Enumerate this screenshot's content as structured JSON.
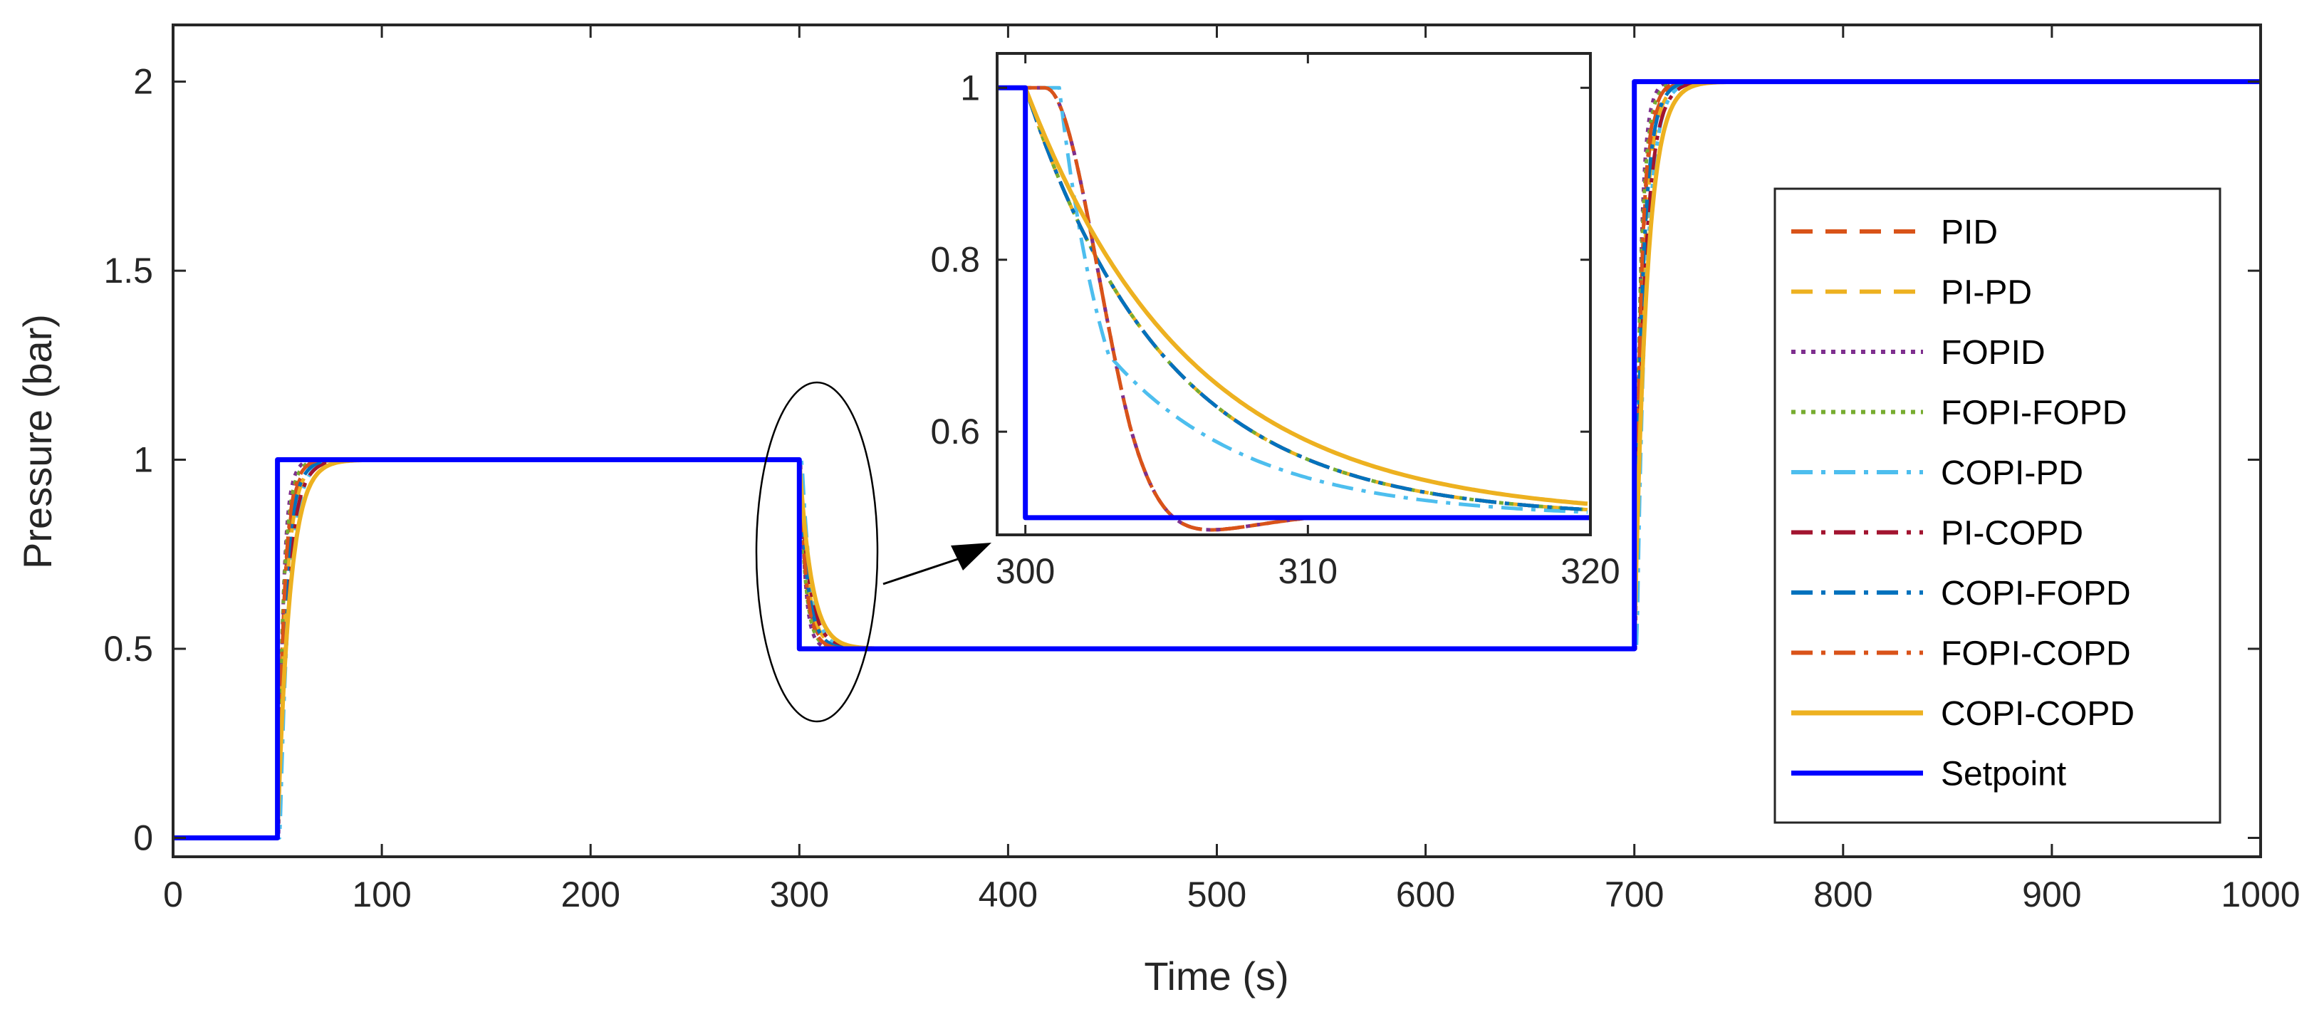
{
  "chart_data": {
    "type": "line",
    "xlabel": "Time (s)",
    "ylabel": "Pressure (bar)",
    "xlim": [
      0,
      1000
    ],
    "ylim": [
      -0.05,
      2.15
    ],
    "xticks": [
      "0",
      "100",
      "200",
      "300",
      "400",
      "500",
      "600",
      "700",
      "800",
      "900",
      "1000"
    ],
    "yticks": [
      "0",
      "0.5",
      "1",
      "1.5",
      "2"
    ],
    "grid": false,
    "legend_position": "right",
    "series": [
      {
        "name": "PID",
        "color": "#D95319",
        "style": "dashed"
      },
      {
        "name": "PI-PD",
        "color": "#EDB120",
        "style": "dashed"
      },
      {
        "name": "FOPID",
        "color": "#7E2F8E",
        "style": "dotted"
      },
      {
        "name": "FOPI-FOPD",
        "color": "#77AC30",
        "style": "dotted"
      },
      {
        "name": "COPI-PD",
        "color": "#4DBEEE",
        "style": "dashdot"
      },
      {
        "name": "PI-COPD",
        "color": "#A2142F",
        "style": "dashdot"
      },
      {
        "name": "COPI-FOPD",
        "color": "#0072BD",
        "style": "dashdot"
      },
      {
        "name": "FOPI-COPD",
        "color": "#D95319",
        "style": "dashdot"
      },
      {
        "name": "COPI-COPD",
        "color": "#EDB120",
        "style": "solid"
      },
      {
        "name": "Setpoint",
        "color": "#0000FF",
        "style": "solid"
      }
    ],
    "setpoint": {
      "t": [
        0,
        50,
        50,
        300,
        300,
        700,
        700,
        1000
      ],
      "values": [
        0,
        0,
        1,
        1,
        0.5,
        0.5,
        2,
        2
      ]
    },
    "inset": {
      "xlim": [
        299,
        320
      ],
      "ylim": [
        0.48,
        1.04
      ],
      "xticks": [
        "300",
        "310",
        "320"
      ],
      "yticks": [
        "0.6",
        "0.8",
        "1"
      ],
      "annotation": "ellipse around step at t=300 with arrow to inset"
    }
  }
}
